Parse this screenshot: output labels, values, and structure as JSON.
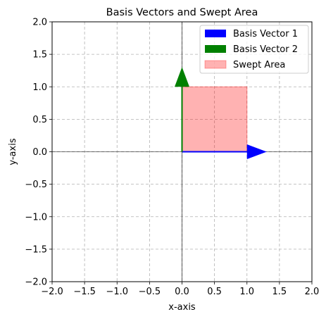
{
  "chart_data": {
    "type": "vector-plot",
    "title": "Basis Vectors and Swept Area",
    "xlabel": "x-axis",
    "ylabel": "y-axis",
    "xlim": [
      -2.0,
      2.0
    ],
    "ylim": [
      -2.0,
      2.0
    ],
    "xticks": [
      -2.0,
      -1.5,
      -1.0,
      -0.5,
      0.0,
      0.5,
      1.0,
      1.5,
      2.0
    ],
    "yticks": [
      -2.0,
      -1.5,
      -1.0,
      -0.5,
      0.0,
      0.5,
      1.0,
      1.5,
      2.0
    ],
    "xtick_labels": [
      "−2.0",
      "−1.5",
      "−1.0",
      "−0.5",
      "0.0",
      "0.5",
      "1.0",
      "1.5",
      "2.0"
    ],
    "ytick_labels": [
      "−2.0",
      "−1.5",
      "−1.0",
      "−0.5",
      "0.0",
      "0.5",
      "1.0",
      "1.5",
      "2.0"
    ],
    "grid": true,
    "legend_position": "top-right",
    "vectors": [
      {
        "name": "Basis Vector 1",
        "origin": [
          0,
          0
        ],
        "components": [
          1,
          0
        ],
        "color": "#0000ff"
      },
      {
        "name": "Basis Vector 2",
        "origin": [
          0,
          0
        ],
        "components": [
          0,
          1
        ],
        "color": "#008000"
      }
    ],
    "area": {
      "name": "Swept Area",
      "x": [
        0,
        1
      ],
      "y": [
        0,
        1
      ],
      "color": "#ff0000",
      "alpha": 0.3
    }
  }
}
